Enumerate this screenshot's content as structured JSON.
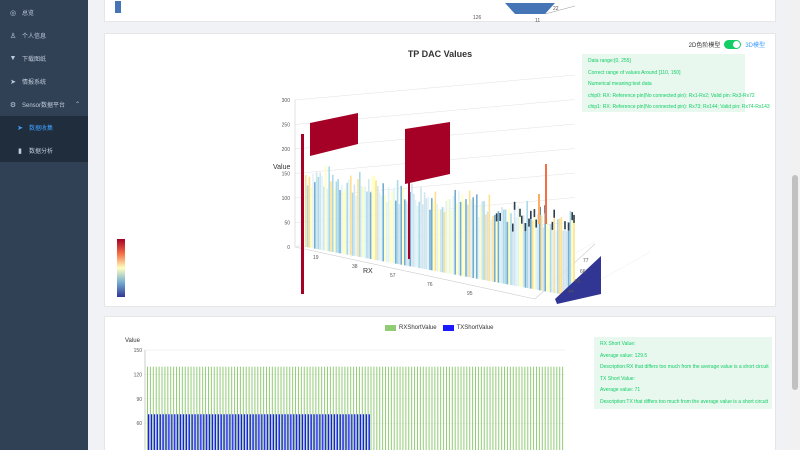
{
  "sidebar": {
    "items": [
      {
        "label": "总览",
        "icon": "dashboard-icon"
      },
      {
        "label": "个人信息",
        "icon": "user-icon"
      },
      {
        "label": "下载图纸",
        "icon": "shirt-icon"
      },
      {
        "label": "情报系统",
        "icon": "send-icon"
      }
    ],
    "group": {
      "label": "Sensor数据平台",
      "icon": "gear-icon"
    },
    "sub_items": [
      {
        "label": "数据收集",
        "icon": "send-icon",
        "active": true
      },
      {
        "label": "数据分析",
        "icon": "bar-chart-icon",
        "active": false
      }
    ]
  },
  "top_card": {
    "tick_labels": [
      "126",
      "11",
      "22"
    ]
  },
  "chart3d": {
    "title": "TP DAC Values",
    "toggle_left": "2D色阶模型",
    "toggle_right": "3D模型",
    "toggle_on": true,
    "info_lines": [
      "Data range:[0, 255]",
      "Correct range of values Around [110, 150]",
      "Numerical meaning:test data",
      "chip0: RX: Reference pin(No connected pin): Rx1-Rx2; Valid pin: Rx3-Rx72",
      "chip1: RX: Reference pin(No connected pin): Rx73; Rx144; Valid pin: Rx74-Rx143"
    ]
  },
  "chart_data": [
    {
      "type": "surface3d",
      "title": "TP DAC Values",
      "zlabel": "Value",
      "xlabel": "RX",
      "z_ticks": [
        "0",
        "50",
        "100",
        "150",
        "200",
        "250",
        "300"
      ],
      "x_ticks": [
        "19",
        "38",
        "57",
        "76",
        "95"
      ],
      "y_ticks": [
        "44",
        "55",
        "66",
        "77"
      ],
      "zlim": [
        0,
        300
      ],
      "colors": {
        "high": "#a50026",
        "mid": "#fee090",
        "low": "#313695"
      }
    },
    {
      "type": "bar",
      "ylabel": "Value",
      "ylim": [
        0,
        150
      ],
      "y_ticks": [
        "60",
        "90",
        "120",
        "150"
      ],
      "series": [
        {
          "name": "RXShortValue",
          "color": "#91cc75",
          "value": 129.5,
          "count": 144
        },
        {
          "name": "TXShortValue",
          "color": "#1a1aff",
          "value": 71,
          "count": 77
        }
      ]
    }
  ],
  "bar_card": {
    "info_lines": [
      "RX Short Value:",
      "Average value: 129.5",
      "Description:RX that differs too much from the average value is a short circuit",
      "TX Short Value:",
      "Average value: 71",
      "Description:TX that differs too much from the average value is a short circuit"
    ]
  }
}
